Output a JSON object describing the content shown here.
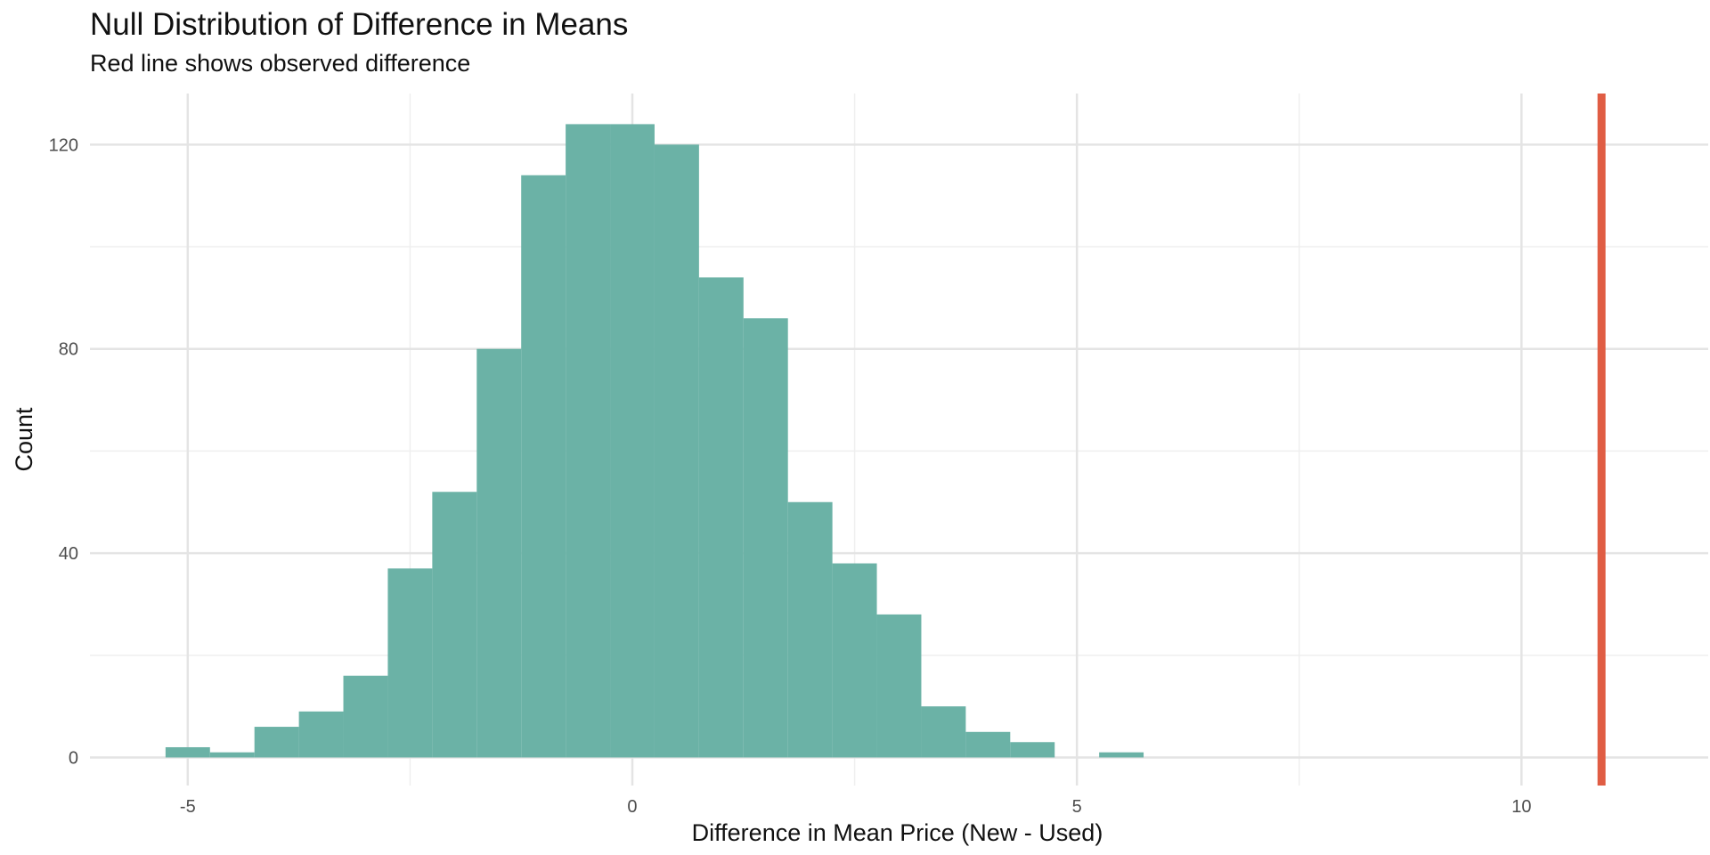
{
  "chart_data": {
    "type": "bar",
    "title": "Null Distribution of Difference in Means",
    "subtitle": "Red line shows observed difference",
    "xlabel": "Difference in Mean Price (New - Used)",
    "ylabel": "Count",
    "xlim": [
      -6.1,
      12.1
    ],
    "ylim": [
      -5.5,
      130
    ],
    "x_ticks": [
      -5,
      0,
      5,
      10
    ],
    "y_ticks": [
      0,
      40,
      80,
      120
    ],
    "grid": true,
    "bins": [
      {
        "x0": -5.25,
        "x1": -4.75,
        "count": 2
      },
      {
        "x0": -4.75,
        "x1": -4.25,
        "count": 1
      },
      {
        "x0": -4.25,
        "x1": -3.75,
        "count": 6
      },
      {
        "x0": -3.75,
        "x1": -3.25,
        "count": 9
      },
      {
        "x0": -3.25,
        "x1": -2.75,
        "count": 16
      },
      {
        "x0": -2.75,
        "x1": -2.25,
        "count": 37
      },
      {
        "x0": -2.25,
        "x1": -1.75,
        "count": 52
      },
      {
        "x0": -1.75,
        "x1": -1.25,
        "count": 80
      },
      {
        "x0": -1.25,
        "x1": -0.75,
        "count": 114
      },
      {
        "x0": -0.75,
        "x1": -0.25,
        "count": 124
      },
      {
        "x0": -0.25,
        "x1": 0.25,
        "count": 124
      },
      {
        "x0": 0.25,
        "x1": 0.75,
        "count": 120
      },
      {
        "x0": 0.75,
        "x1": 1.25,
        "count": 94
      },
      {
        "x0": 1.25,
        "x1": 1.75,
        "count": 86
      },
      {
        "x0": 1.75,
        "x1": 2.25,
        "count": 50
      },
      {
        "x0": 2.25,
        "x1": 2.75,
        "count": 38
      },
      {
        "x0": 2.75,
        "x1": 3.25,
        "count": 28
      },
      {
        "x0": 3.25,
        "x1": 3.75,
        "count": 10
      },
      {
        "x0": 3.75,
        "x1": 4.25,
        "count": 5
      },
      {
        "x0": 4.25,
        "x1": 4.75,
        "count": 3
      },
      {
        "x0": 4.75,
        "x1": 5.25,
        "count": 0
      },
      {
        "x0": 5.25,
        "x1": 5.75,
        "count": 1
      }
    ],
    "observed_difference": 10.9,
    "colors": {
      "bars": "#66b0a3",
      "observed_line": "#e05d44",
      "grid_major": "#e4e4e4",
      "grid_minor": "#efefef",
      "tick_text": "#4d4d4d",
      "text": "#111111"
    }
  }
}
